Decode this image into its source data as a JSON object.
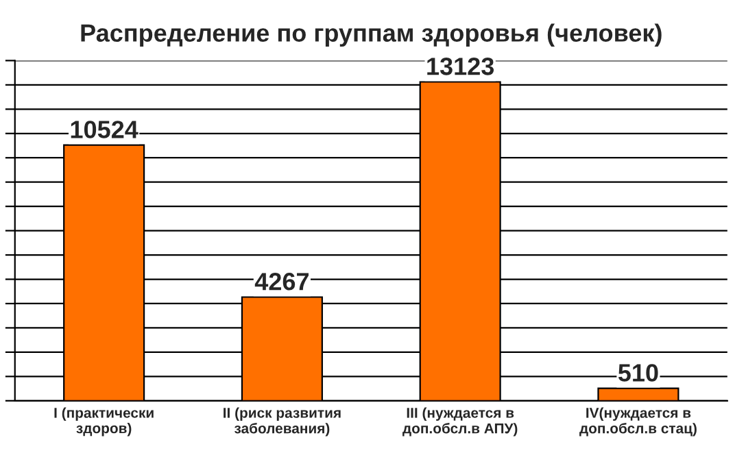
{
  "chart_data": {
    "type": "bar",
    "title": "Распределение по группам здоровья (человек)",
    "categories": [
      "I (практически\nздоров)",
      "II (риск развития\nзаболевания)",
      "III (нуждается в\nдоп.обсл.в АПУ)",
      "IV(нуждается в\nдоп.обсл.в стац)"
    ],
    "values": [
      10524,
      4267,
      13123,
      510
    ],
    "color": "#ff7000",
    "data_labels": true,
    "grid": "y",
    "tick_labels": "x",
    "ylim": [
      0,
      14000
    ],
    "yticks": [
      {
        "value": 0,
        "label": null
      },
      {
        "value": 1000,
        "label": null
      },
      {
        "value": 2000,
        "label": null
      },
      {
        "value": 3000,
        "label": null
      },
      {
        "value": 4000,
        "label": null
      },
      {
        "value": 5000,
        "label": null
      },
      {
        "value": 6000,
        "label": null
      },
      {
        "value": 7000,
        "label": null
      },
      {
        "value": 8000,
        "label": null
      },
      {
        "value": 9000,
        "label": null
      },
      {
        "value": 10000,
        "label": null
      },
      {
        "value": 11000,
        "label": null
      },
      {
        "value": 12000,
        "label": null
      },
      {
        "value": 13000,
        "label": null
      },
      {
        "value": 14000,
        "label": null
      }
    ]
  }
}
